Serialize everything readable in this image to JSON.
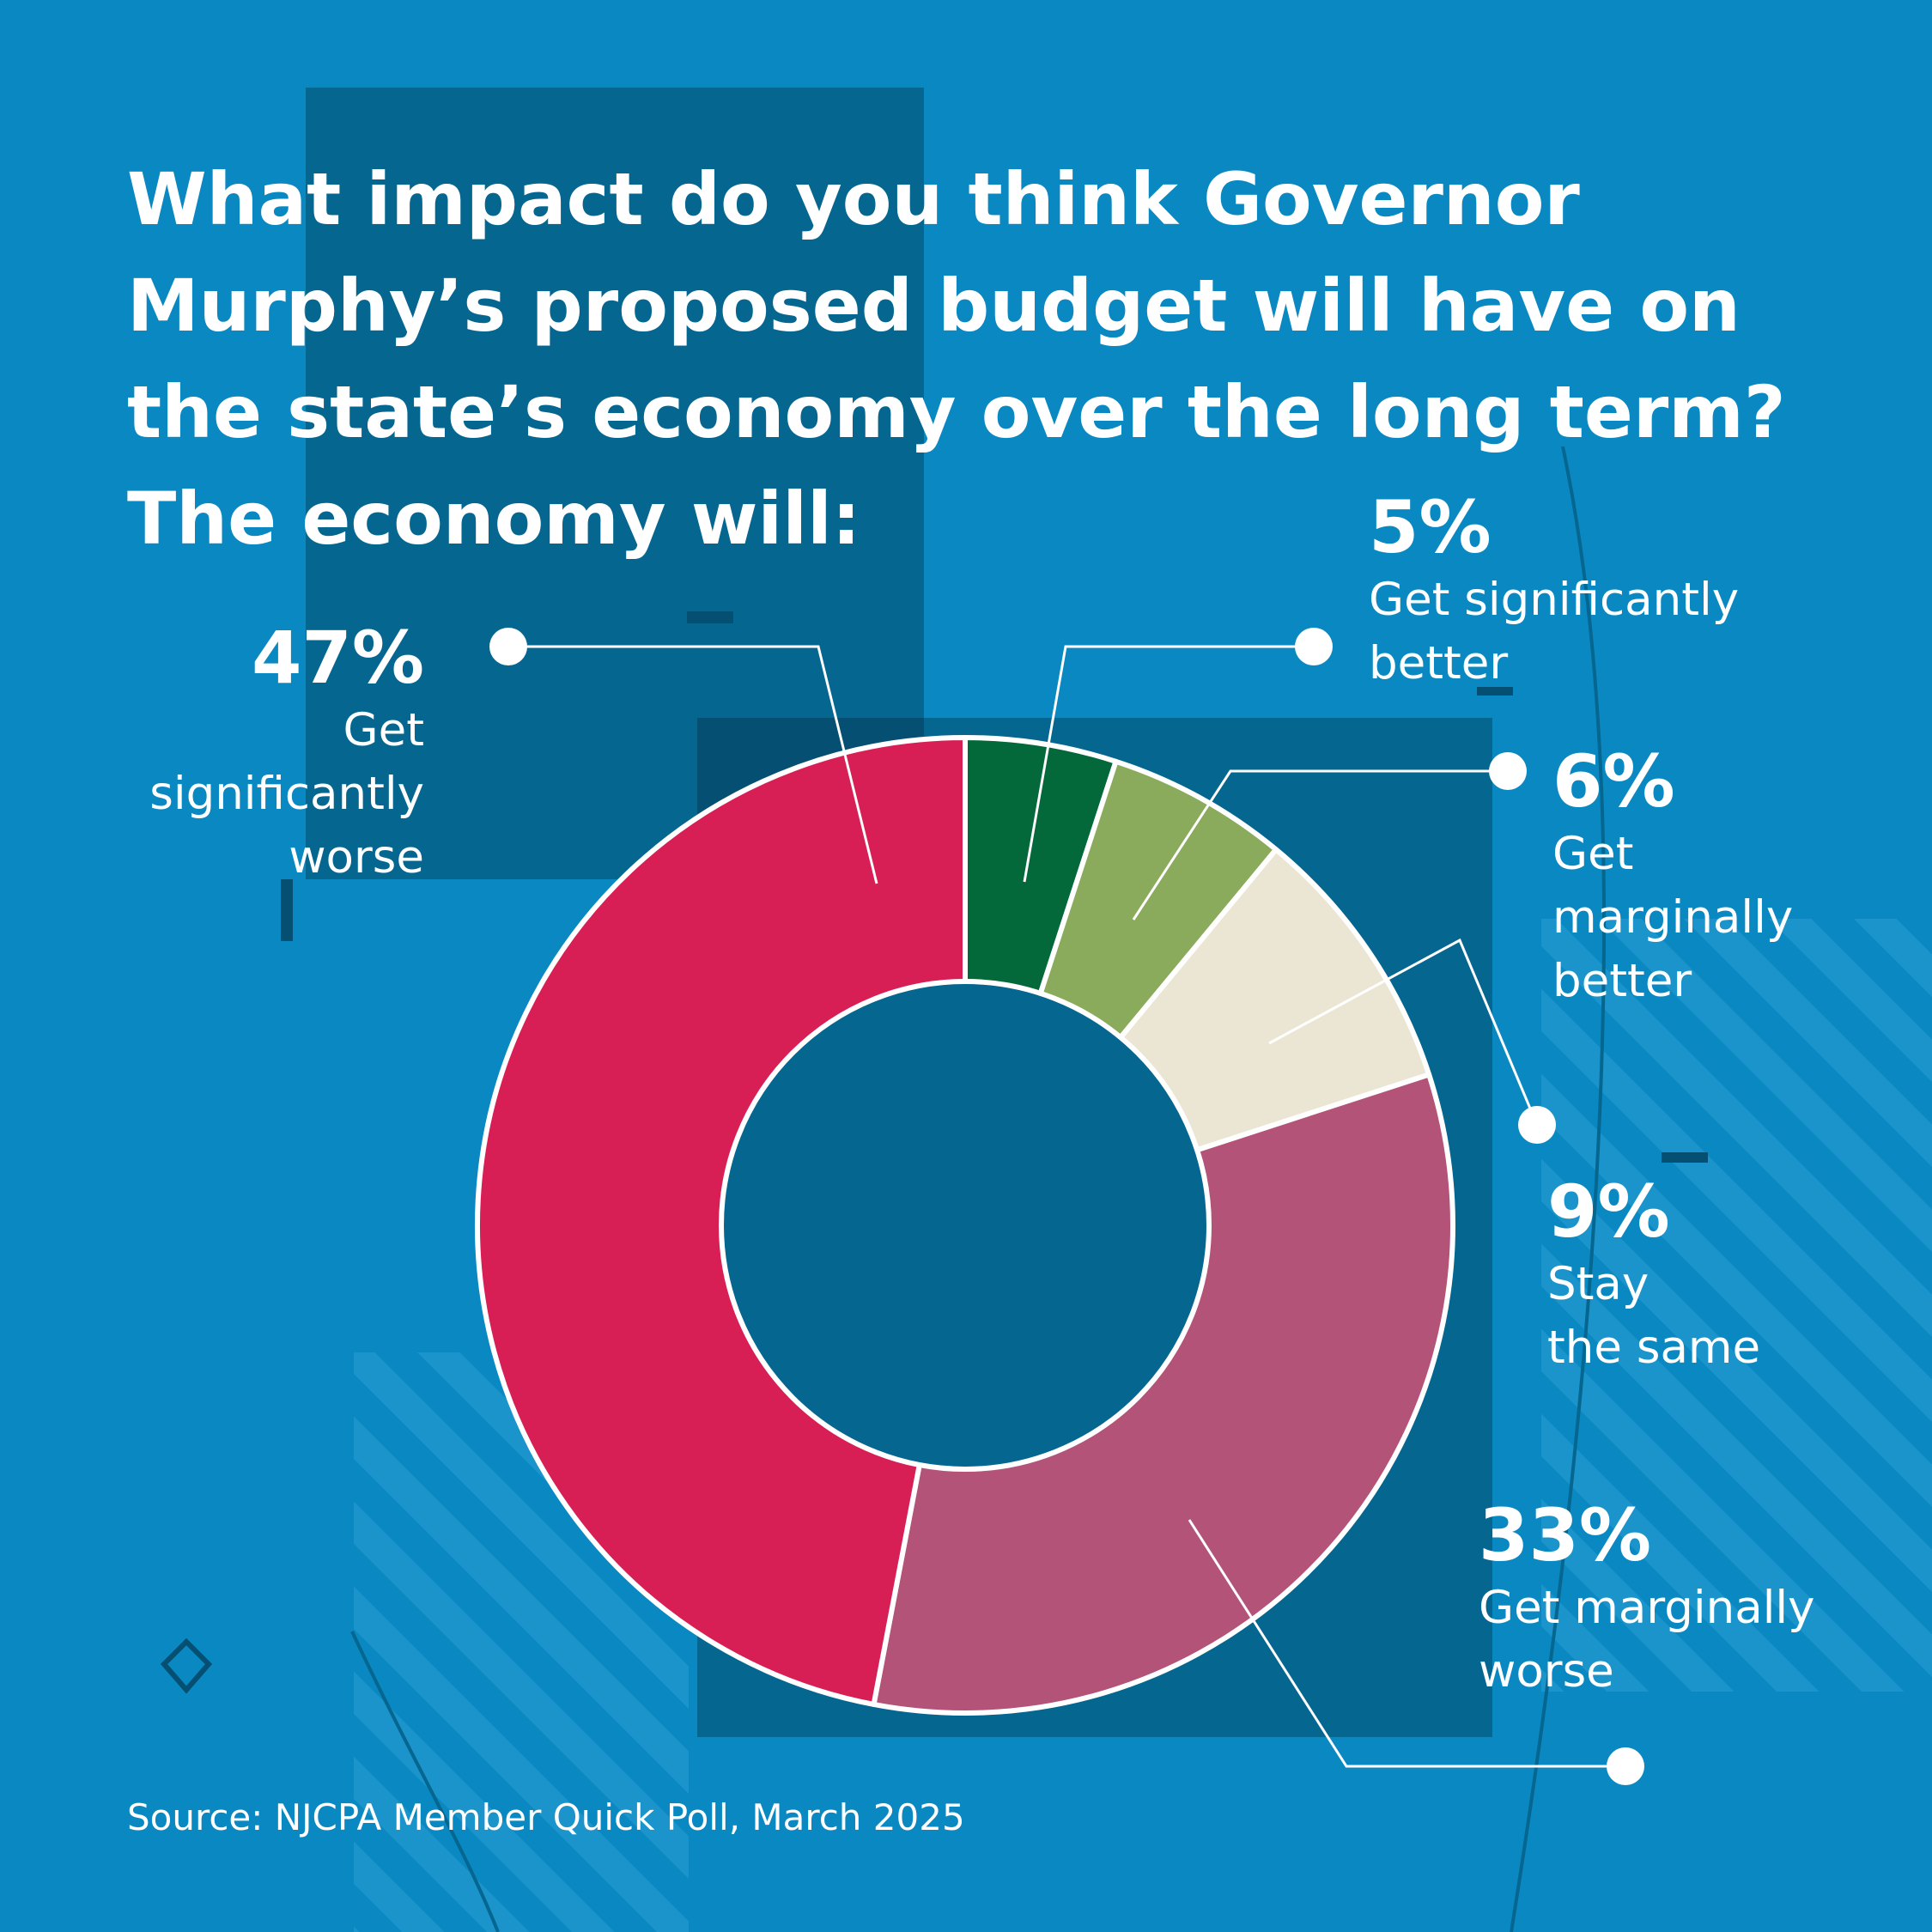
{
  "title_lines": [
    "What impact do you think Governor",
    "Murphy’s proposed budget will have on",
    "the state’s economy over the long term?",
    "The economy will:"
  ],
  "source": "Source: NJCPA Member Quick Poll, March 2025",
  "colors": {
    "background": "#0a88c2",
    "panel": "#056690",
    "panel_dark": "#044f72",
    "outline": "#ffffff"
  },
  "chart_data": {
    "type": "pie",
    "donut": true,
    "title": "What impact do you think Governor Murphy’s proposed budget will have on the state’s economy over the long term? The economy will:",
    "slices": [
      {
        "label": "Get significantly better",
        "value": 5,
        "display": "5%",
        "label_lines": [
          "Get significantly",
          "better"
        ],
        "color": "#03693a"
      },
      {
        "label": "Get marginally better",
        "value": 6,
        "display": "6%",
        "label_lines": [
          "Get",
          "marginally",
          "better"
        ],
        "color": "#8aab5c"
      },
      {
        "label": "Stay the same",
        "value": 9,
        "display": "9%",
        "label_lines": [
          "Stay",
          "the same"
        ],
        "color": "#ebe6d3"
      },
      {
        "label": "Get marginally worse",
        "value": 33,
        "display": "33%",
        "label_lines": [
          "Get marginally",
          "worse"
        ],
        "color": "#b35378"
      },
      {
        "label": "Get significantly worse",
        "value": 47,
        "display": "47%",
        "label_lines": [
          "Get",
          "significantly",
          "worse"
        ],
        "color": "#d81f55"
      }
    ]
  }
}
